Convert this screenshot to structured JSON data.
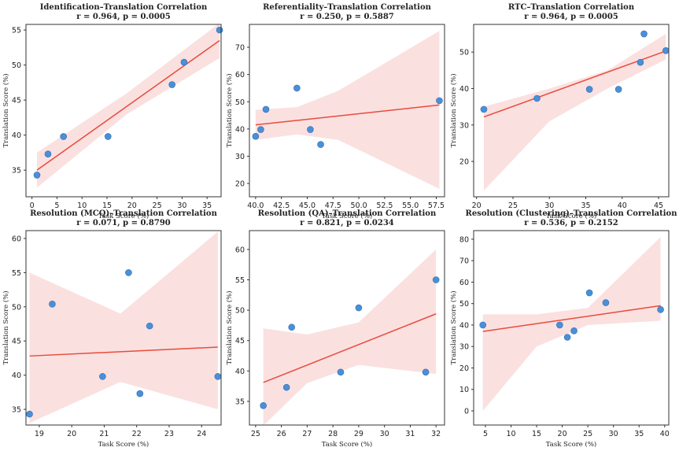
{
  "chart_data": [
    {
      "type": "scatter",
      "title": "Identification–Translation Correlation",
      "subtitle": "r = 0.964, p = 0.0005",
      "xlabel": "Task Score (%)",
      "ylabel": "Translation Score (%)",
      "x": [
        1,
        3.2,
        6.3,
        15.2,
        28,
        30.4,
        37.5
      ],
      "values": [
        34.3,
        37.3,
        39.8,
        39.8,
        47.2,
        50.4,
        55
      ],
      "color": "#4a8fd8",
      "fit_x": [
        1,
        37.5
      ],
      "fit_y": [
        35,
        53.5
      ],
      "fit_color": "#e74c3c",
      "ci_x": [
        1,
        19,
        37.5
      ],
      "ci_lower": [
        32.5,
        43,
        51
      ],
      "ci_upper": [
        37.5,
        46,
        56
      ],
      "ci_color": "#f9d3d3",
      "xlim": [
        -1.2,
        37.8
      ],
      "ylim": [
        31.2,
        55.8
      ],
      "xticks": [
        0,
        5,
        10,
        15,
        20,
        25,
        30,
        35
      ],
      "yticks": [
        35,
        40,
        45,
        50,
        55
      ]
    },
    {
      "type": "scatter",
      "title": "Referentiality–Translation Correlation",
      "subtitle": "r = 0.250, p = 0.5887",
      "xlabel": "Task Score (%)",
      "ylabel": "Translation Score (%)",
      "x": [
        40,
        40.5,
        41,
        44,
        45.3,
        46.3,
        57.8
      ],
      "values": [
        37.3,
        39.8,
        47.2,
        55,
        39.8,
        34.3,
        50.4
      ],
      "color": "#4a8fd8",
      "fit_x": [
        40,
        57.8
      ],
      "fit_y": [
        41.5,
        48.8
      ],
      "fit_color": "#e74c3c",
      "ci_x": [
        40,
        44,
        48,
        57.8
      ],
      "ci_lower": [
        36,
        38,
        36,
        18
      ],
      "ci_upper": [
        47,
        48,
        54,
        76
      ],
      "ci_color": "#f9d3d3",
      "xlim": [
        39.4,
        58.3
      ],
      "ylim": [
        15.1,
        78.4
      ],
      "xticks": [
        {
          "value": 40,
          "label": "40.0"
        },
        42.5,
        {
          "value": 45,
          "label": "45.0"
        },
        47.5,
        {
          "value": 50,
          "label": "50.0"
        },
        52.5,
        {
          "value": 55,
          "label": "55.0"
        },
        57.5
      ],
      "yticks": [
        20,
        30,
        40,
        50,
        60,
        70
      ]
    },
    {
      "type": "scatter",
      "title": "RTC–Translation Correlation",
      "subtitle": "r = 0.964, p = 0.0005",
      "xlabel": "Task Score (%)",
      "ylabel": "Translation Score (%)",
      "x": [
        21,
        28.3,
        35.5,
        39.5,
        42.5,
        43,
        46
      ],
      "values": [
        34.3,
        37.3,
        39.8,
        39.8,
        47.2,
        55,
        50.4
      ],
      "color": "#4a8fd8",
      "fit_x": [
        21,
        46
      ],
      "fit_y": [
        32.2,
        50.3
      ],
      "fit_color": "#e74c3c",
      "ci_x": [
        21,
        30,
        38,
        46
      ],
      "ci_lower": [
        12,
        31,
        40,
        48
      ],
      "ci_upper": [
        35,
        40,
        45,
        55
      ],
      "ci_color": "#f9d3d3",
      "xlim": [
        19.6,
        46.4
      ],
      "ylim": [
        10.3,
        57.6
      ],
      "xticks": [
        20,
        25,
        30,
        35,
        40,
        45
      ],
      "yticks": [
        20,
        30,
        40,
        50
      ]
    },
    {
      "type": "scatter",
      "title": "Resolution (MCQ)–Translation Correlation",
      "subtitle": "r = 0.071, p = 0.8790",
      "xlabel": "Task Score (%)",
      "ylabel": "Translation Score (%)",
      "x": [
        18.7,
        19.4,
        20.95,
        21.75,
        22.1,
        22.4,
        24.5
      ],
      "values": [
        34.3,
        50.4,
        39.8,
        55,
        37.3,
        47.2,
        39.8
      ],
      "color": "#4a8fd8",
      "fit_x": [
        18.7,
        24.5
      ],
      "fit_y": [
        42.8,
        44.1
      ],
      "fit_color": "#e74c3c",
      "ci_x": [
        18.7,
        21.5,
        24.5
      ],
      "ci_lower": [
        33,
        39,
        35
      ],
      "ci_upper": [
        55,
        49,
        61
      ],
      "ci_color": "#f9d3d3",
      "xlim": [
        18.59,
        24.6
      ],
      "ylim": [
        32.7,
        61.15
      ],
      "xticks": [
        19,
        20,
        21,
        22,
        23,
        24
      ],
      "yticks": [
        35,
        40,
        45,
        50,
        55,
        60
      ]
    },
    {
      "type": "scatter",
      "title": "Resolution (QA)–Translation Correlation",
      "subtitle": "r = 0.821, p = 0.0234",
      "xlabel": "Task Score (%)",
      "ylabel": "Translation Score (%)",
      "x": [
        25.3,
        26.2,
        26.4,
        28.3,
        29,
        31.6,
        32
      ],
      "values": [
        34.3,
        37.3,
        47.2,
        39.8,
        50.4,
        39.8,
        55
      ],
      "color": "#4a8fd8",
      "fit_x": [
        25.3,
        32
      ],
      "fit_y": [
        38.1,
        49.4
      ],
      "fit_color": "#e74c3c",
      "ci_x": [
        25.3,
        27,
        29,
        32
      ],
      "ci_lower": [
        31,
        38,
        41,
        39.5
      ],
      "ci_upper": [
        47,
        46,
        48,
        60
      ],
      "ci_color": "#f9d3d3",
      "xlim": [
        24.76,
        32.33
      ],
      "ylim": [
        31.1,
        63.1
      ],
      "xticks": [
        25,
        26,
        27,
        28,
        29,
        30,
        31,
        32
      ],
      "yticks": [
        35,
        40,
        45,
        50,
        55,
        60
      ]
    },
    {
      "type": "scatter",
      "title": "Resolution (Clustering)–Translation Correlation",
      "subtitle": "r = 0.536, p = 0.2152",
      "xlabel": "Task Score (%)",
      "ylabel": "Translation Score (%)",
      "x": [
        4.5,
        19.5,
        21,
        22.3,
        25.3,
        28.5,
        39.2
      ],
      "values": [
        40,
        40,
        34.3,
        37.3,
        55,
        50.4,
        47.2
      ],
      "color": "#4a8fd8",
      "fit_x": [
        4.5,
        39.2
      ],
      "fit_y": [
        37,
        49
      ],
      "fit_color": "#e74c3c",
      "ci_x": [
        4.5,
        15,
        25,
        39.2
      ],
      "ci_lower": [
        0,
        30,
        40,
        42
      ],
      "ci_upper": [
        45,
        45,
        48,
        81
      ],
      "ci_color": "#f9d3d3",
      "xlim": [
        2.7,
        40.8
      ],
      "ylim": [
        -6.6,
        84
      ],
      "xticks": [
        5,
        10,
        15,
        20,
        25,
        30,
        35,
        40
      ],
      "yticks": [
        0,
        10,
        20,
        30,
        40,
        50,
        60,
        70,
        80
      ]
    }
  ]
}
